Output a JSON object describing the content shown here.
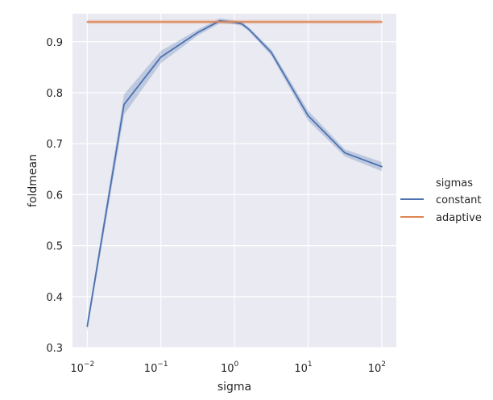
{
  "chart_data": {
    "type": "line",
    "title": "",
    "xlabel": "sigma",
    "ylabel": "foldmean",
    "x_scale": "log",
    "xlim": [
      0.0063,
      158
    ],
    "ylim": [
      0.3,
      0.955
    ],
    "x_ticks": [
      {
        "value": 0.01,
        "base": "10",
        "exp": "−2"
      },
      {
        "value": 0.1,
        "base": "10",
        "exp": "−1"
      },
      {
        "value": 1,
        "base": "10",
        "exp": "0"
      },
      {
        "value": 10,
        "base": "10",
        "exp": "1"
      },
      {
        "value": 100,
        "base": "10",
        "exp": "2"
      }
    ],
    "y_ticks": [
      {
        "value": 0.3,
        "label": "0.3"
      },
      {
        "value": 0.4,
        "label": "0.4"
      },
      {
        "value": 0.5,
        "label": "0.5"
      },
      {
        "value": 0.6,
        "label": "0.6"
      },
      {
        "value": 0.7,
        "label": "0.7"
      },
      {
        "value": 0.8,
        "label": "0.8"
      },
      {
        "value": 0.9,
        "label": "0.9"
      }
    ],
    "grid": true,
    "legend": {
      "title": "sigmas",
      "placement": "right"
    },
    "series": [
      {
        "name": "constant",
        "color": "#4c72b0",
        "x": [
          0.01,
          0.0316,
          0.1,
          0.316,
          0.631,
          1.0,
          1.26,
          1.58,
          3.16,
          10,
          31.6,
          100
        ],
        "y": [
          0.342,
          0.777,
          0.87,
          0.918,
          0.941,
          0.938,
          0.935,
          0.924,
          0.879,
          0.755,
          0.682,
          0.655
        ],
        "y_low": [
          0.332,
          0.757,
          0.858,
          0.912,
          0.936,
          0.934,
          0.931,
          0.92,
          0.873,
          0.745,
          0.675,
          0.646
        ],
        "y_high": [
          0.352,
          0.797,
          0.882,
          0.924,
          0.946,
          0.942,
          0.939,
          0.928,
          0.885,
          0.765,
          0.689,
          0.664
        ]
      },
      {
        "name": "adaptive",
        "color": "#dd8452",
        "x": [
          0.01,
          100
        ],
        "y": [
          0.939,
          0.939
        ],
        "y_low": [
          0.935,
          0.935
        ],
        "y_high": [
          0.943,
          0.943
        ]
      }
    ]
  }
}
